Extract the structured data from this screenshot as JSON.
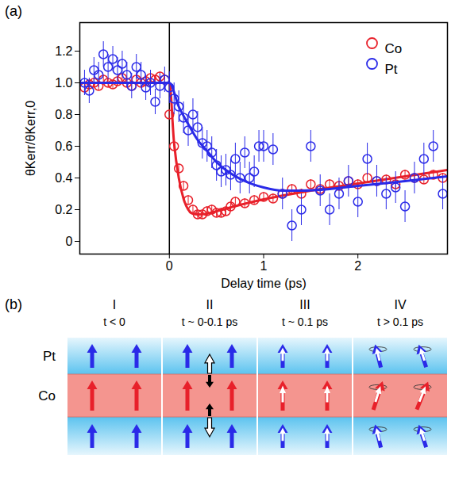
{
  "chart_data": {
    "type": "scatter",
    "panel_label": "(a)",
    "x_label": "Delay time (ps)",
    "y_label": "θKerr/θKerr,0",
    "xlim": [
      -0.95,
      2.95
    ],
    "xticks": [
      0,
      1,
      2
    ],
    "ylim": [
      -0.08,
      1.38
    ],
    "yticks": [
      0,
      0.2,
      0.4,
      0.6,
      0.8,
      {
        "value": 1.0,
        "label": "1.0"
      },
      1.2
    ],
    "vertical_line": 0,
    "legend": "upper right",
    "grid": false,
    "series": [
      {
        "name": "Co",
        "color": "#e8202a",
        "marker": "open circle",
        "x": [
          -0.9,
          -0.85,
          -0.8,
          -0.75,
          -0.7,
          -0.65,
          -0.6,
          -0.55,
          -0.5,
          -0.45,
          -0.4,
          -0.35,
          -0.3,
          -0.25,
          -0.2,
          -0.15,
          -0.1,
          -0.05,
          0,
          0.05,
          0.1,
          0.15,
          0.2,
          0.25,
          0.3,
          0.35,
          0.4,
          0.45,
          0.5,
          0.55,
          0.6,
          0.65,
          0.7,
          0.8,
          0.9,
          1.0,
          1.1,
          1.2,
          1.3,
          1.4,
          1.5,
          1.6,
          1.7,
          1.8,
          1.9,
          2.0,
          2.1,
          2.2,
          2.3,
          2.4,
          2.5,
          2.6,
          2.7,
          2.8,
          2.9
        ],
        "values": [
          0.97,
          0.99,
          1.0,
          0.98,
          1.02,
          1.0,
          0.99,
          1.01,
          1.03,
          1.0,
          0.98,
          1.02,
          1.0,
          1.01,
          1.03,
          1.02,
          1.04,
          1.02,
          0.8,
          0.6,
          0.46,
          0.35,
          0.26,
          0.2,
          0.17,
          0.17,
          0.19,
          0.2,
          0.18,
          0.18,
          0.19,
          0.22,
          0.25,
          0.24,
          0.26,
          0.28,
          0.27,
          0.3,
          0.33,
          0.3,
          0.36,
          0.33,
          0.36,
          0.35,
          0.38,
          0.36,
          0.4,
          0.38,
          0.39,
          0.36,
          0.42,
          0.4,
          0.39,
          0.42,
          0.4
        ],
        "errors": [
          0.03,
          0.03,
          0.03,
          0.03,
          0.03,
          0.03,
          0.03,
          0.03,
          0.03,
          0.03,
          0.03,
          0.03,
          0.03,
          0.03,
          0.03,
          0.03,
          0.03,
          0.03,
          0.03,
          0.03,
          0.03,
          0.03,
          0.03,
          0.03,
          0.03,
          0.03,
          0.03,
          0.03,
          0.03,
          0.03,
          0.03,
          0.03,
          0.03,
          0.03,
          0.03,
          0.03,
          0.03,
          0.03,
          0.03,
          0.03,
          0.03,
          0.03,
          0.03,
          0.03,
          0.03,
          0.03,
          0.03,
          0.03,
          0.03,
          0.03,
          0.03,
          0.03,
          0.03,
          0.03,
          0.03
        ],
        "fit": {
          "x": [
            -0.95,
            0,
            0.05,
            0.1,
            0.15,
            0.2,
            0.25,
            0.3,
            0.4,
            0.5,
            0.75,
            1.0,
            1.5,
            2.0,
            2.5,
            2.95
          ],
          "values": [
            1.0,
            1.0,
            0.62,
            0.4,
            0.27,
            0.2,
            0.175,
            0.17,
            0.175,
            0.19,
            0.23,
            0.265,
            0.32,
            0.365,
            0.41,
            0.45
          ]
        }
      },
      {
        "name": "Pt",
        "color": "#2a2ae8",
        "marker": "open circle",
        "x": [
          -0.9,
          -0.85,
          -0.8,
          -0.75,
          -0.7,
          -0.65,
          -0.6,
          -0.55,
          -0.5,
          -0.45,
          -0.4,
          -0.35,
          -0.3,
          -0.25,
          -0.2,
          -0.15,
          -0.1,
          -0.05,
          0,
          0.05,
          0.1,
          0.15,
          0.2,
          0.25,
          0.3,
          0.35,
          0.4,
          0.45,
          0.5,
          0.55,
          0.6,
          0.65,
          0.7,
          0.75,
          0.8,
          0.85,
          0.9,
          0.95,
          1.0,
          1.1,
          1.2,
          1.3,
          1.4,
          1.5,
          1.6,
          1.7,
          1.8,
          1.9,
          2.0,
          2.1,
          2.2,
          2.3,
          2.4,
          2.5,
          2.6,
          2.7,
          2.8,
          2.9
        ],
        "values": [
          1.0,
          0.95,
          1.08,
          1.05,
          1.18,
          1.1,
          1.15,
          1.08,
          1.12,
          1.05,
          0.98,
          1.1,
          1.05,
          0.97,
          1.0,
          0.88,
          0.98,
          1.02,
          0.97,
          0.9,
          0.85,
          0.78,
          0.7,
          0.8,
          0.72,
          0.62,
          0.6,
          0.56,
          0.48,
          0.44,
          0.45,
          0.42,
          0.52,
          0.4,
          0.56,
          0.4,
          0.44,
          0.6,
          0.6,
          0.58,
          0.3,
          0.1,
          0.2,
          0.6,
          0.32,
          0.2,
          0.3,
          0.38,
          0.25,
          0.52,
          0.38,
          0.3,
          0.34,
          0.22,
          0.4,
          0.52,
          0.6,
          0.3
        ],
        "errors": [
          0.08,
          0.08,
          0.08,
          0.08,
          0.08,
          0.08,
          0.08,
          0.08,
          0.08,
          0.08,
          0.08,
          0.08,
          0.08,
          0.08,
          0.08,
          0.08,
          0.08,
          0.08,
          0.1,
          0.1,
          0.1,
          0.1,
          0.1,
          0.1,
          0.1,
          0.1,
          0.1,
          0.1,
          0.1,
          0.1,
          0.1,
          0.1,
          0.1,
          0.1,
          0.1,
          0.1,
          0.1,
          0.1,
          0.1,
          0.1,
          0.1,
          0.1,
          0.1,
          0.1,
          0.1,
          0.1,
          0.1,
          0.1,
          0.1,
          0.1,
          0.1,
          0.1,
          0.1,
          0.1,
          0.1,
          0.1,
          0.1,
          0.1
        ],
        "fit": {
          "x": [
            -0.95,
            0,
            0.1,
            0.2,
            0.3,
            0.4,
            0.5,
            0.6,
            0.8,
            1.0,
            1.2,
            1.4,
            1.7,
            2.0,
            2.5,
            2.95
          ],
          "values": [
            1.0,
            1.0,
            0.85,
            0.74,
            0.64,
            0.57,
            0.5,
            0.45,
            0.38,
            0.34,
            0.32,
            0.32,
            0.33,
            0.35,
            0.38,
            0.41
          ]
        }
      }
    ]
  },
  "diagram": {
    "panel_label": "(b)",
    "layers": [
      "Pt",
      "Co"
    ],
    "stages": [
      {
        "label": "I",
        "time": "t < 0"
      },
      {
        "label": "II",
        "time": "t ~ 0-0.1 ps"
      },
      {
        "label": "III",
        "time": "t ~ 0.1 ps"
      },
      {
        "label": "IV",
        "time": "t > 0.1 ps"
      }
    ]
  }
}
